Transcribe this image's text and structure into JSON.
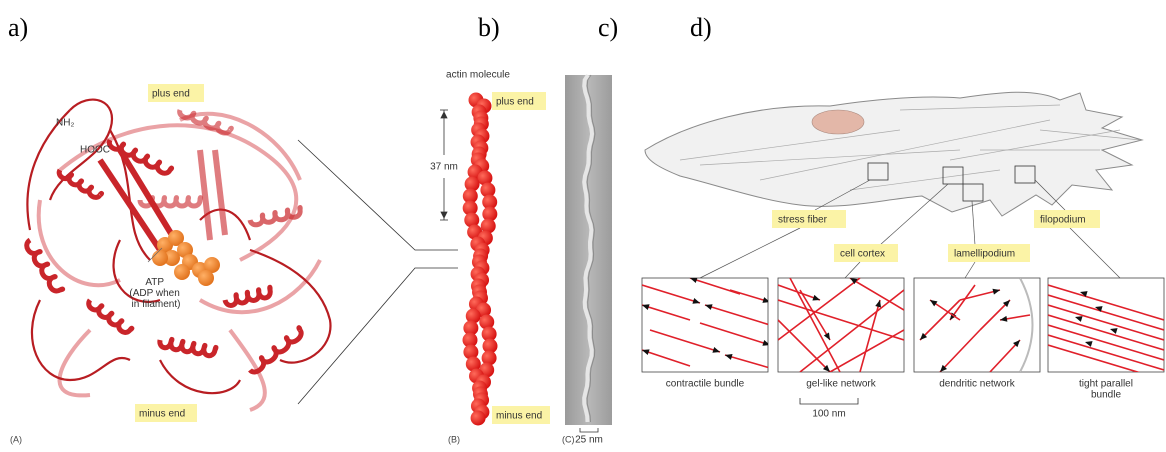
{
  "panel_labels": [
    "a)",
    "b)",
    "c)",
    "d)"
  ],
  "panel_a": {
    "tag": "(A)",
    "plus_end": "plus end",
    "minus_end": "minus end",
    "n_terminus": "NH₂",
    "c_terminus": "HOOC",
    "atp_label": [
      "ATP",
      "(ADP when",
      "in filament)"
    ]
  },
  "panel_b": {
    "tag": "(B)",
    "molecule_label": "actin molecule",
    "plus_end": "plus end",
    "minus_end": "minus end",
    "repeat_length": "37 nm"
  },
  "panel_c": {
    "tag": "(C)",
    "scale_bar": "25 nm"
  },
  "panel_d": {
    "callouts": [
      "stress fiber",
      "cell cortex",
      "lamellipodium",
      "filopodium"
    ],
    "boxes": [
      {
        "caption": [
          "contractile bundle"
        ]
      },
      {
        "caption": [
          "gel-like network"
        ]
      },
      {
        "caption": [
          "dendritic network"
        ]
      },
      {
        "caption": [
          "tight parallel",
          "bundle"
        ]
      }
    ],
    "scale_bar": "100 nm"
  }
}
